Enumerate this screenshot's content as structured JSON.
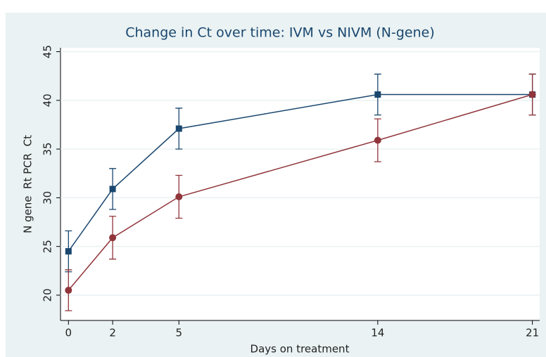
{
  "chart_data": {
    "type": "line",
    "title": "Change in Ct over time: IVM vs NIVM (N-gene)",
    "x_label": "Days on treatment",
    "y_label": "N gene  Rt PCR  Ct",
    "x": [
      0,
      2,
      5,
      14,
      21
    ],
    "series": [
      {
        "color": "#1a476f",
        "values": [
          24.5,
          30.9,
          37.1,
          40.6,
          40.6
        ],
        "errors": [
          2.1,
          2.1,
          2.1,
          2.1,
          2.1
        ]
      },
      {
        "color": "#90353b",
        "values": [
          20.5,
          25.9,
          30.1,
          35.9,
          40.6
        ],
        "errors": [
          2.1,
          2.2,
          2.2,
          2.2,
          2.1
        ]
      }
    ],
    "xlim": [
      -0.36,
      21.33
    ],
    "xticks": [
      0,
      2,
      5,
      14,
      21
    ],
    "ylim": [
      17.4,
      45.4
    ],
    "yticks": [
      20,
      25,
      30,
      35,
      40,
      45
    ],
    "grid": true
  }
}
